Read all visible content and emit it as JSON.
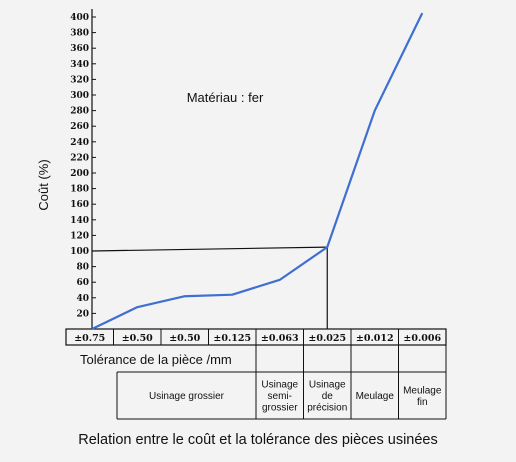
{
  "chart_data": {
    "type": "line",
    "title": "Relation entre le coût et la tolérance des pièces usinées",
    "annotation": "Matériau : fer",
    "xlabel": "Tolérance de la pièce /mm",
    "ylabel": "Coût (%)",
    "ylim": [
      0,
      400
    ],
    "ytick_step": 20,
    "categories": [
      "±0.75",
      "±0.50",
      "±0.50",
      "±0.125",
      "±0.063",
      "±0.025",
      "±0.012",
      "±0.006"
    ],
    "series": [
      {
        "values": [
          0,
          28,
          42,
          44,
          63,
          105,
          280,
          405
        ]
      }
    ],
    "reference_value": 100,
    "processes": [
      {
        "label": [
          "Usinage grossier"
        ],
        "span": [
          0,
          4
        ]
      },
      {
        "label": [
          "Usinage",
          "semi-",
          "grossier"
        ],
        "span": [
          4,
          5
        ]
      },
      {
        "label": [
          "Usinage",
          "de",
          "précision"
        ],
        "span": [
          5,
          6
        ]
      },
      {
        "label": [
          "Meulage"
        ],
        "span": [
          6,
          7
        ]
      },
      {
        "label": [
          "Meulage",
          "fin"
        ],
        "span": [
          7,
          8
        ]
      }
    ],
    "line_color": "#3f6fd0"
  }
}
